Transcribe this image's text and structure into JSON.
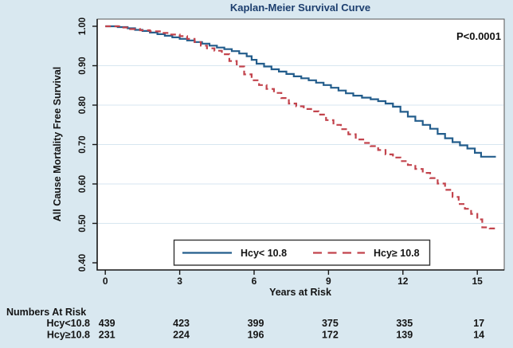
{
  "figure": {
    "background_color": "#d9e8f0",
    "plot_background": "#ffffff",
    "gridline_color": "#d7e6f0",
    "axis_color": "#222222",
    "title_color": "#1c3e6e"
  },
  "chart_data": {
    "type": "line",
    "subtype": "kaplan-meier-step",
    "title": "Kaplan-Meier Survival Curve",
    "xlabel": "Years at Risk",
    "ylabel": "All Cause Mortality Free Survival",
    "annotation": "P<0.0001",
    "xlim": [
      -0.33,
      16.1
    ],
    "ylim": [
      0.38,
      1.02
    ],
    "xticks": {
      "values": [
        0,
        3,
        6,
        9,
        12,
        15
      ],
      "labels": [
        "0",
        "3",
        "6",
        "9",
        "12",
        "15"
      ]
    },
    "yticks": {
      "values": [
        1.0,
        0.9,
        0.8,
        0.7,
        0.6,
        0.5,
        0.4
      ],
      "labels": [
        "1.00",
        "0.90",
        "0.80",
        "0.70",
        "0.60",
        "0.50",
        "0.40"
      ]
    },
    "grid_y": [
      0.9,
      0.8,
      0.7,
      0.6,
      0.5
    ],
    "grid": "horizontal-only",
    "legend_position": "bottom-center-inside-box",
    "step": true,
    "series": [
      {
        "name": "Hcy< 10.8",
        "color": "#235d8c",
        "style": "solid",
        "points": [
          [
            0,
            1.0
          ],
          [
            0.5,
            0.998
          ],
          [
            0.9,
            0.995
          ],
          [
            1.2,
            0.991
          ],
          [
            1.5,
            0.988
          ],
          [
            1.8,
            0.984
          ],
          [
            2.1,
            0.98
          ],
          [
            2.4,
            0.976
          ],
          [
            2.7,
            0.972
          ],
          [
            3.0,
            0.968
          ],
          [
            3.3,
            0.964
          ],
          [
            3.6,
            0.96
          ],
          [
            3.9,
            0.956
          ],
          [
            4.2,
            0.951
          ],
          [
            4.5,
            0.946
          ],
          [
            4.8,
            0.942
          ],
          [
            5.1,
            0.937
          ],
          [
            5.4,
            0.931
          ],
          [
            5.7,
            0.924
          ],
          [
            5.9,
            0.915
          ],
          [
            6.1,
            0.905
          ],
          [
            6.4,
            0.898
          ],
          [
            6.7,
            0.891
          ],
          [
            7.0,
            0.885
          ],
          [
            7.3,
            0.879
          ],
          [
            7.6,
            0.873
          ],
          [
            7.9,
            0.868
          ],
          [
            8.2,
            0.863
          ],
          [
            8.5,
            0.857
          ],
          [
            8.8,
            0.851
          ],
          [
            9.1,
            0.844
          ],
          [
            9.4,
            0.837
          ],
          [
            9.7,
            0.83
          ],
          [
            10.0,
            0.824
          ],
          [
            10.35,
            0.819
          ],
          [
            10.7,
            0.815
          ],
          [
            11.0,
            0.81
          ],
          [
            11.3,
            0.804
          ],
          [
            11.6,
            0.796
          ],
          [
            11.9,
            0.783
          ],
          [
            12.2,
            0.771
          ],
          [
            12.5,
            0.76
          ],
          [
            12.8,
            0.75
          ],
          [
            13.1,
            0.74
          ],
          [
            13.4,
            0.727
          ],
          [
            13.7,
            0.716
          ],
          [
            14.0,
            0.706
          ],
          [
            14.3,
            0.698
          ],
          [
            14.6,
            0.69
          ],
          [
            14.9,
            0.679
          ],
          [
            15.15,
            0.669
          ],
          [
            15.75,
            0.669
          ]
        ]
      },
      {
        "name": "Hcy≥ 10.8",
        "color": "#c2434c",
        "style": "dashed",
        "points": [
          [
            0,
            1.0
          ],
          [
            0.6,
            0.997
          ],
          [
            1.0,
            0.993
          ],
          [
            1.4,
            0.99
          ],
          [
            1.8,
            0.987
          ],
          [
            2.2,
            0.983
          ],
          [
            2.6,
            0.979
          ],
          [
            3.0,
            0.975
          ],
          [
            3.3,
            0.968
          ],
          [
            3.6,
            0.96
          ],
          [
            3.85,
            0.951
          ],
          [
            4.1,
            0.944
          ],
          [
            4.4,
            0.938
          ],
          [
            4.7,
            0.929
          ],
          [
            5.0,
            0.912
          ],
          [
            5.3,
            0.898
          ],
          [
            5.6,
            0.878
          ],
          [
            5.9,
            0.863
          ],
          [
            6.2,
            0.851
          ],
          [
            6.5,
            0.841
          ],
          [
            6.8,
            0.831
          ],
          [
            7.1,
            0.818
          ],
          [
            7.4,
            0.804
          ],
          [
            7.7,
            0.797
          ],
          [
            8.0,
            0.79
          ],
          [
            8.3,
            0.784
          ],
          [
            8.6,
            0.776
          ],
          [
            8.9,
            0.762
          ],
          [
            9.2,
            0.75
          ],
          [
            9.5,
            0.739
          ],
          [
            9.8,
            0.726
          ],
          [
            10.1,
            0.713
          ],
          [
            10.4,
            0.704
          ],
          [
            10.7,
            0.696
          ],
          [
            11.0,
            0.686
          ],
          [
            11.3,
            0.675
          ],
          [
            11.6,
            0.667
          ],
          [
            11.9,
            0.658
          ],
          [
            12.2,
            0.648
          ],
          [
            12.5,
            0.638
          ],
          [
            12.8,
            0.628
          ],
          [
            13.1,
            0.615
          ],
          [
            13.4,
            0.601
          ],
          [
            13.7,
            0.585
          ],
          [
            14.0,
            0.567
          ],
          [
            14.25,
            0.549
          ],
          [
            14.5,
            0.537
          ],
          [
            14.75,
            0.524
          ],
          [
            15.0,
            0.51
          ],
          [
            15.2,
            0.49
          ],
          [
            15.5,
            0.487
          ],
          [
            15.8,
            0.487
          ]
        ]
      }
    ]
  },
  "risk_table": {
    "title": "Numbers At Risk",
    "columns_x_years": [
      0,
      3,
      6,
      9,
      12,
      15
    ],
    "rows": [
      {
        "label": "Hcy<10.8",
        "values": [
          "439",
          "423",
          "399",
          "375",
          "335",
          "17"
        ]
      },
      {
        "label": "Hcy≥10.8",
        "values": [
          "231",
          "224",
          "196",
          "172",
          "139",
          "14"
        ]
      }
    ]
  }
}
